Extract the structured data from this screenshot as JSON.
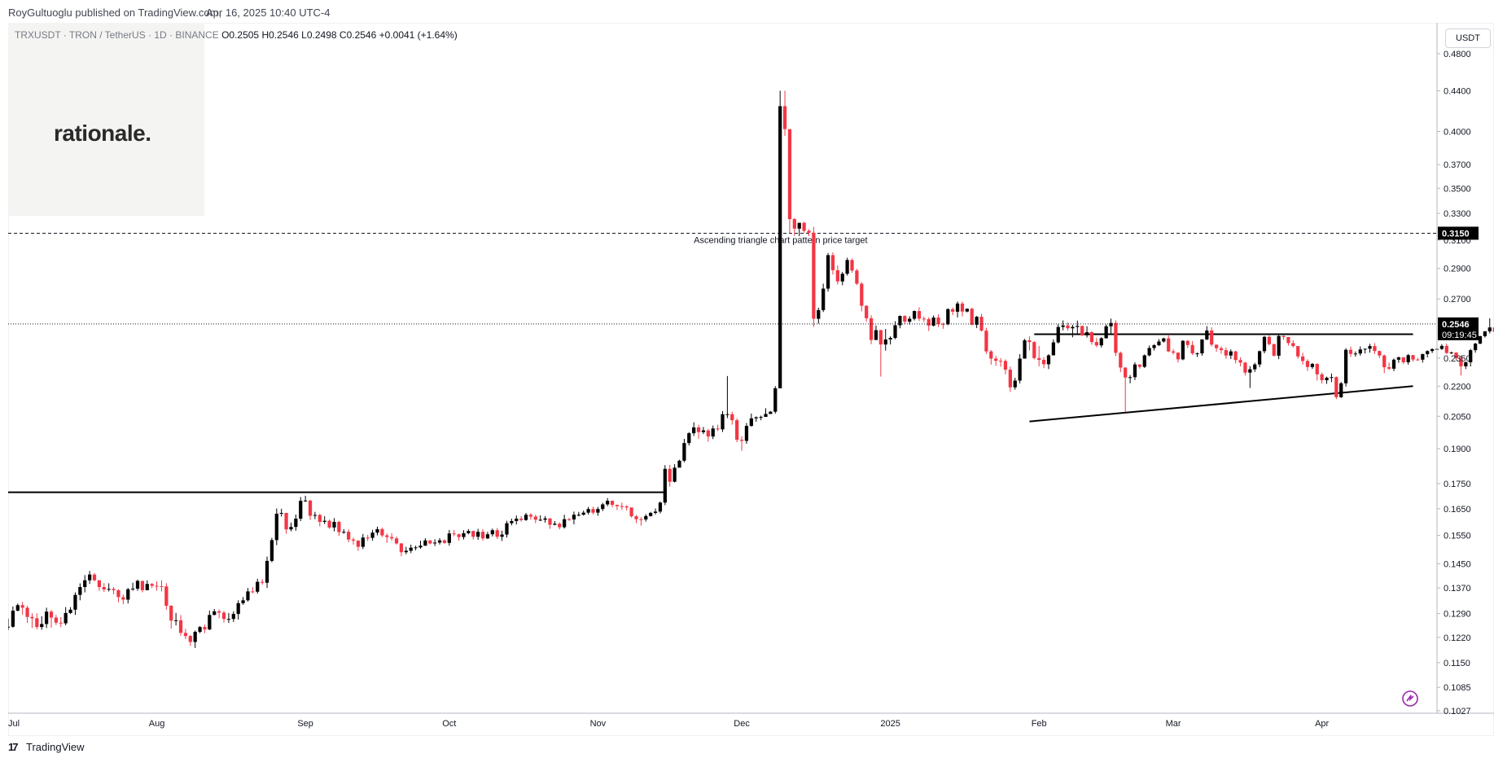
{
  "header": {
    "publisher": "RoyGultuoglu published on TradingView.com,",
    "timestamp": "Apr 16, 2025 10:40 UTC-4"
  },
  "legend": {
    "symbol": "TRXUSDT · TRON / TetherUS · 1D · BINANCE",
    "open": "O0.2505",
    "high": "H0.2546",
    "low": "L0.2498",
    "close": "C0.2546",
    "change": "+0.0041 (+1.64%)"
  },
  "logo": {
    "text": "rationale."
  },
  "footer": {
    "brand": "TradingView"
  },
  "price_axis": {
    "currency": "USDT"
  },
  "colors": {
    "up": "#000000",
    "down": "#f23645",
    "line": "#000000"
  },
  "chart_data": {
    "type": "candlestick",
    "symbol": "TRXUSDT",
    "interval": "1D",
    "exchange": "BINANCE",
    "y_scale": "log",
    "ylim": [
      0.1,
      0.5
    ],
    "y_ticks": [
      "0.4800",
      "0.4400",
      "0.4000",
      "0.3700",
      "0.3500",
      "0.3300",
      "0.3100",
      "0.2900",
      "0.2700",
      "0.2350",
      "0.2200",
      "0.2050",
      "0.1900",
      "0.1750",
      "0.1650",
      "0.1550",
      "0.1450",
      "0.1370",
      "0.1290",
      "0.1220",
      "0.1150",
      "0.1085",
      "0.1027"
    ],
    "x_ticks": [
      {
        "label": "Jul",
        "date": "2024-07-01"
      },
      {
        "label": "Aug",
        "date": "2024-08-01"
      },
      {
        "label": "Sep",
        "date": "2024-09-01"
      },
      {
        "label": "Oct",
        "date": "2024-10-01"
      },
      {
        "label": "Nov",
        "date": "2024-11-01"
      },
      {
        "label": "Dec",
        "date": "2024-12-01"
      },
      {
        "label": "2025",
        "date": "2025-01-01"
      },
      {
        "label": "Feb",
        "date": "2025-02-01"
      },
      {
        "label": "Mar",
        "date": "2025-03-01"
      },
      {
        "label": "Apr",
        "date": "2025-04-01"
      }
    ],
    "x_range": [
      "2024-07-01",
      "2025-04-25"
    ],
    "date_range": [
      "2024-07-01",
      "2025-04-16"
    ],
    "series": [
      {
        "name": "TRXUSDT",
        "close": [
          0.1251,
          0.1299,
          0.1316,
          0.1308,
          0.128,
          0.1276,
          0.125,
          0.1259,
          0.1296,
          0.1278,
          0.1263,
          0.1261,
          0.1292,
          0.1302,
          0.1348,
          0.1373,
          0.1395,
          0.1414,
          0.1395,
          0.1373,
          0.1365,
          0.1367,
          0.1363,
          0.1341,
          0.1333,
          0.1366,
          0.1368,
          0.1393,
          0.1363,
          0.1383,
          0.1377,
          0.1376,
          0.1375,
          0.1314,
          0.1269,
          0.127,
          0.1233,
          0.1224,
          0.1207,
          0.1236,
          0.125,
          0.1243,
          0.1286,
          0.1297,
          0.1293,
          0.1274,
          0.1274,
          0.1289,
          0.1322,
          0.1331,
          0.1359,
          0.1358,
          0.139,
          0.1387,
          0.146,
          0.1533,
          0.1631,
          0.1634,
          0.1572,
          0.1581,
          0.1612,
          0.1681,
          0.1682,
          0.1623,
          0.1626,
          0.16,
          0.1604,
          0.1579,
          0.16,
          0.1562,
          0.1563,
          0.1535,
          0.1531,
          0.1509,
          0.1542,
          0.1541,
          0.156,
          0.1573,
          0.155,
          0.1544,
          0.1539,
          0.1521,
          0.149,
          0.1495,
          0.1506,
          0.1507,
          0.1513,
          0.1532,
          0.1521,
          0.1524,
          0.1532,
          0.1523,
          0.1557,
          0.1554,
          0.1544,
          0.1558,
          0.1566,
          0.1545,
          0.1563,
          0.1539,
          0.1554,
          0.1569,
          0.1545,
          0.1553,
          0.1595,
          0.1603,
          0.1612,
          0.1607,
          0.1627,
          0.162,
          0.1608,
          0.1608,
          0.1613,
          0.1589,
          0.1593,
          0.158,
          0.161,
          0.1609,
          0.1627,
          0.1627,
          0.1635,
          0.1649,
          0.1635,
          0.1649,
          0.1667,
          0.1681,
          0.1665,
          0.166,
          0.1659,
          0.1655,
          0.1621,
          0.161,
          0.1609,
          0.1622,
          0.1634,
          0.1639,
          0.1674,
          0.1812,
          0.1758,
          0.1817,
          0.1847,
          0.1925,
          0.197,
          0.1997,
          0.1975,
          0.1983,
          0.1955,
          0.1992,
          0.1988,
          0.206,
          0.206,
          0.2031,
          0.194,
          0.1935,
          0.2004,
          0.204,
          0.2045,
          0.2047,
          0.2061,
          0.2072,
          0.2189,
          0.4244,
          0.4022,
          0.3256,
          0.3184,
          0.3228,
          0.3168,
          0.3154,
          0.2577,
          0.263,
          0.2766,
          0.2992,
          0.2888,
          0.2813,
          0.2864,
          0.2958,
          0.2886,
          0.2798,
          0.2657,
          0.258,
          0.2452,
          0.2509,
          0.2426,
          0.2455,
          0.2464,
          0.2538,
          0.2594,
          0.256,
          0.2577,
          0.2624,
          0.2578,
          0.2575,
          0.2536,
          0.2584,
          0.2546,
          0.2544,
          0.2636,
          0.262,
          0.2671,
          0.2621,
          0.2638,
          0.2541,
          0.2589,
          0.2506,
          0.2387,
          0.2347,
          0.2335,
          0.2334,
          0.2287,
          0.2194,
          0.2229,
          0.2347,
          0.245,
          0.244,
          0.235,
          0.234,
          0.2316,
          0.2365,
          0.2438,
          0.2528,
          0.2537,
          0.252,
          0.2528,
          0.2534,
          0.2479,
          0.2497,
          0.244,
          0.2421,
          0.2462,
          0.2532,
          0.2552,
          0.2379,
          0.2298,
          0.2245,
          0.2247,
          0.2315,
          0.2302,
          0.2365,
          0.2406,
          0.2422,
          0.2443,
          0.2461,
          0.2387,
          0.238,
          0.2343,
          0.2447,
          0.2423,
          0.2376,
          0.2376,
          0.2455,
          0.2507,
          0.2425,
          0.2405,
          0.2394,
          0.2364,
          0.2387,
          0.2339,
          0.2325,
          0.2271,
          0.2289,
          0.2315,
          0.2388,
          0.247,
          0.2428,
          0.2363,
          0.2475,
          0.2469,
          0.2434,
          0.2417,
          0.2359,
          0.2334,
          0.2301,
          0.2318,
          0.2262,
          0.2231,
          0.2244,
          0.2247,
          0.2144,
          0.2215,
          0.2396,
          0.2373,
          0.2375,
          0.2398,
          0.2402,
          0.2417,
          0.2389,
          0.2364,
          0.23,
          0.2292,
          0.2341,
          0.2354,
          0.2327,
          0.2366,
          0.2342,
          0.2341,
          0.2372,
          0.2389,
          0.24,
          0.2401,
          0.2418,
          0.2378,
          0.2381,
          0.2349,
          0.2305,
          0.2327,
          0.2394,
          0.2431,
          0.2474,
          0.2502,
          0.2525,
          0.2499,
          0.2505,
          0.2546
        ],
        "high": [
          0.1275,
          0.1312,
          0.1321,
          0.1326,
          0.1314,
          0.1291,
          0.1291,
          0.1282,
          0.1308,
          0.1301,
          0.1286,
          0.128,
          0.131,
          0.131,
          0.1356,
          0.1385,
          0.1412,
          0.1426,
          0.1419,
          0.1395,
          0.1386,
          0.1385,
          0.1373,
          0.1366,
          0.1349,
          0.137,
          0.1387,
          0.1397,
          0.1392,
          0.1395,
          0.1386,
          0.1392,
          0.1395,
          0.1386,
          0.1316,
          0.1292,
          0.1286,
          0.1245,
          0.1227,
          0.124,
          0.1253,
          0.1257,
          0.1299,
          0.1304,
          0.1303,
          0.1298,
          0.1292,
          0.1297,
          0.1331,
          0.1341,
          0.137,
          0.1373,
          0.14,
          0.1399,
          0.1475,
          0.1541,
          0.1651,
          0.165,
          0.1633,
          0.1597,
          0.1628,
          0.1696,
          0.1701,
          0.1684,
          0.1638,
          0.1631,
          0.1621,
          0.1609,
          0.1614,
          0.1604,
          0.1573,
          0.1572,
          0.1542,
          0.1533,
          0.1555,
          0.1552,
          0.157,
          0.1582,
          0.1579,
          0.1557,
          0.1558,
          0.1546,
          0.1522,
          0.1509,
          0.1517,
          0.1513,
          0.1531,
          0.154,
          0.1532,
          0.1536,
          0.154,
          0.1536,
          0.157,
          0.157,
          0.1557,
          0.1569,
          0.1573,
          0.1567,
          0.1574,
          0.1573,
          0.1563,
          0.1575,
          0.1577,
          0.1567,
          0.1604,
          0.1612,
          0.1624,
          0.1622,
          0.1634,
          0.1633,
          0.1627,
          0.1625,
          0.1622,
          0.1614,
          0.1603,
          0.1598,
          0.1627,
          0.1615,
          0.1639,
          0.1638,
          0.1643,
          0.1657,
          0.1658,
          0.1657,
          0.1673,
          0.1692,
          0.1682,
          0.1666,
          0.1674,
          0.1664,
          0.1649,
          0.1626,
          0.1618,
          0.1629,
          0.1638,
          0.1651,
          0.1678,
          0.1828,
          0.1829,
          0.1832,
          0.1851,
          0.1944,
          0.1975,
          0.2021,
          0.2009,
          0.1999,
          0.199,
          0.2006,
          0.201,
          0.2075,
          0.2253,
          0.2072,
          0.204,
          0.1956,
          0.2018,
          0.2063,
          0.2049,
          0.2053,
          0.2089,
          0.2075,
          0.22,
          0.44,
          0.44,
          0.4016,
          0.3265,
          0.3228,
          0.3236,
          0.318,
          0.3197,
          0.2645,
          0.2798,
          0.3007,
          0.3012,
          0.2921,
          0.2877,
          0.2974,
          0.2969,
          0.2897,
          0.2809,
          0.2659,
          0.2598,
          0.2536,
          0.2511,
          0.2516,
          0.2473,
          0.2562,
          0.2597,
          0.2598,
          0.2592,
          0.2628,
          0.2648,
          0.2591,
          0.2586,
          0.2597,
          0.2604,
          0.2553,
          0.2641,
          0.2646,
          0.2684,
          0.2683,
          0.2641,
          0.2645,
          0.2594,
          0.2607,
          0.2523,
          0.2395,
          0.2363,
          0.235,
          0.2343,
          0.2303,
          0.2244,
          0.2372,
          0.2458,
          0.2473,
          0.2445,
          0.2418,
          0.2355,
          0.2372,
          0.2455,
          0.2544,
          0.2567,
          0.2556,
          0.2541,
          0.2566,
          0.2536,
          0.2532,
          0.2503,
          0.2463,
          0.2468,
          0.2543,
          0.2578,
          0.2568,
          0.2386,
          0.23,
          0.2258,
          0.2327,
          0.2316,
          0.237,
          0.242,
          0.2428,
          0.2457,
          0.2465,
          0.2478,
          0.24,
          0.2382,
          0.245,
          0.245,
          0.2446,
          0.2381,
          0.2456,
          0.2533,
          0.2526,
          0.2426,
          0.2415,
          0.2409,
          0.2398,
          0.2391,
          0.2354,
          0.2329,
          0.2306,
          0.2324,
          0.2392,
          0.2475,
          0.2479,
          0.2431,
          0.2482,
          0.2479,
          0.247,
          0.245,
          0.2417,
          0.238,
          0.2343,
          0.2323,
          0.2321,
          0.2271,
          0.225,
          0.2266,
          0.2251,
          0.2222,
          0.2405,
          0.2415,
          0.2387,
          0.2415,
          0.2403,
          0.243,
          0.2434,
          0.2392,
          0.237,
          0.2325,
          0.2348,
          0.2358,
          0.2356,
          0.2373,
          0.2368,
          0.2351,
          0.2374,
          0.2393,
          0.2404,
          0.241,
          0.2428,
          0.2431,
          0.2386,
          0.2381,
          0.2364,
          0.2331,
          0.2401,
          0.2435,
          0.2476,
          0.2504,
          0.258,
          0.253,
          0.2518,
          0.2546
        ],
        "low": [
          0.1241,
          0.1248,
          0.1297,
          0.1287,
          0.1262,
          0.1248,
          0.1243,
          0.1242,
          0.1247,
          0.1248,
          0.1256,
          0.125,
          0.1255,
          0.1289,
          0.1286,
          0.1331,
          0.1356,
          0.1383,
          0.1392,
          0.1361,
          0.1357,
          0.1359,
          0.135,
          0.1325,
          0.1319,
          0.1321,
          0.1361,
          0.1361,
          0.1356,
          0.1363,
          0.137,
          0.1361,
          0.1359,
          0.1302,
          0.1245,
          0.1255,
          0.1225,
          0.1215,
          0.1196,
          0.119,
          0.1232,
          0.1232,
          0.1241,
          0.1285,
          0.1276,
          0.1263,
          0.1262,
          0.1265,
          0.1272,
          0.1317,
          0.1327,
          0.1353,
          0.1352,
          0.1381,
          0.137,
          0.1455,
          0.1515,
          0.162,
          0.1556,
          0.1565,
          0.1567,
          0.1603,
          0.1677,
          0.1608,
          0.161,
          0.1583,
          0.1592,
          0.1574,
          0.1565,
          0.1548,
          0.1556,
          0.1525,
          0.1517,
          0.1495,
          0.1501,
          0.153,
          0.1531,
          0.155,
          0.1544,
          0.1523,
          0.1531,
          0.1517,
          0.1476,
          0.1483,
          0.1487,
          0.1497,
          0.1502,
          0.1512,
          0.1517,
          0.1512,
          0.1517,
          0.152,
          0.1513,
          0.1547,
          0.1531,
          0.1535,
          0.1554,
          0.1535,
          0.1534,
          0.1531,
          0.1537,
          0.1546,
          0.1537,
          0.153,
          0.1542,
          0.1587,
          0.159,
          0.1601,
          0.1604,
          0.1608,
          0.1595,
          0.1603,
          0.1597,
          0.1574,
          0.1587,
          0.1572,
          0.1575,
          0.1604,
          0.1591,
          0.1621,
          0.1624,
          0.1628,
          0.1628,
          0.1623,
          0.1641,
          0.166,
          0.1656,
          0.1645,
          0.1645,
          0.1643,
          0.1616,
          0.1595,
          0.1586,
          0.1601,
          0.162,
          0.1628,
          0.1632,
          0.1664,
          0.1738,
          0.1755,
          0.1826,
          0.184,
          0.1914,
          0.1957,
          0.1945,
          0.1966,
          0.1931,
          0.1943,
          0.198,
          0.1976,
          0.2041,
          0.201,
          0.1929,
          0.189,
          0.1922,
          0.2001,
          0.2024,
          0.2031,
          0.2047,
          0.2061,
          0.2063,
          0.2189,
          0.3959,
          0.315,
          0.313,
          0.3129,
          0.3154,
          0.3129,
          0.2528,
          0.2548,
          0.2618,
          0.2747,
          0.2859,
          0.2793,
          0.2788,
          0.2852,
          0.2871,
          0.2789,
          0.2622,
          0.256,
          0.2428,
          0.2451,
          0.225,
          0.2391,
          0.2426,
          0.2456,
          0.252,
          0.2545,
          0.2542,
          0.2567,
          0.2563,
          0.2557,
          0.2504,
          0.2531,
          0.2528,
          0.2517,
          0.2538,
          0.2599,
          0.2585,
          0.2591,
          0.2616,
          0.2538,
          0.2521,
          0.2501,
          0.2373,
          0.2314,
          0.2308,
          0.2302,
          0.2262,
          0.217,
          0.2182,
          0.2214,
          0.2347,
          0.2392,
          0.2343,
          0.2305,
          0.2295,
          0.229,
          0.2365,
          0.2432,
          0.2508,
          0.2507,
          0.2467,
          0.2483,
          0.2474,
          0.2466,
          0.2425,
          0.2411,
          0.2409,
          0.246,
          0.2489,
          0.2361,
          0.2273,
          0.207,
          0.2215,
          0.2232,
          0.2292,
          0.2296,
          0.2359,
          0.2392,
          0.2417,
          0.2437,
          0.2383,
          0.2369,
          0.2326,
          0.2338,
          0.2406,
          0.2367,
          0.2356,
          0.2363,
          0.2451,
          0.2415,
          0.2385,
          0.2374,
          0.2346,
          0.2345,
          0.2321,
          0.2305,
          0.2256,
          0.2191,
          0.2275,
          0.23,
          0.2376,
          0.242,
          0.2359,
          0.2344,
          0.2453,
          0.242,
          0.2409,
          0.2347,
          0.2314,
          0.228,
          0.2291,
          0.2229,
          0.2213,
          0.2212,
          0.2221,
          0.2134,
          0.214,
          0.2198,
          0.2356,
          0.2358,
          0.2363,
          0.2375,
          0.238,
          0.2373,
          0.235,
          0.2269,
          0.2284,
          0.2279,
          0.2324,
          0.2318,
          0.2314,
          0.233,
          0.2335,
          0.2325,
          0.2354,
          0.2378,
          0.2377,
          0.2395,
          0.2373,
          0.2373,
          0.2341,
          0.2256,
          0.229,
          0.2304,
          0.238,
          0.2428,
          0.2466,
          0.249,
          0.2475,
          0.248,
          0.2498
        ]
      }
    ],
    "lines": [
      {
        "kind": "horizontal",
        "price": 0.1715,
        "from": "2024-07-01",
        "to": "2024-11-15",
        "label": ""
      },
      {
        "kind": "horizontal",
        "price": 0.2485,
        "from": "2025-01-31",
        "to": "2025-04-20",
        "label": ""
      },
      {
        "kind": "trendline",
        "points": [
          [
            "2025-01-30",
            0.2025
          ],
          [
            "2025-04-20",
            0.22
          ]
        ],
        "label": ""
      },
      {
        "kind": "horizontal-dashed",
        "price": 0.315,
        "from": "2024-07-01",
        "to": "2025-04-25",
        "label": "Ascending triangle chart pattern price target"
      }
    ],
    "price_labels": [
      {
        "value": "0.3150",
        "bg": "#000000"
      },
      {
        "value": "0.2546",
        "countdown": "09:19:45",
        "bg": "#000000"
      }
    ],
    "last_price": 0.2546
  }
}
